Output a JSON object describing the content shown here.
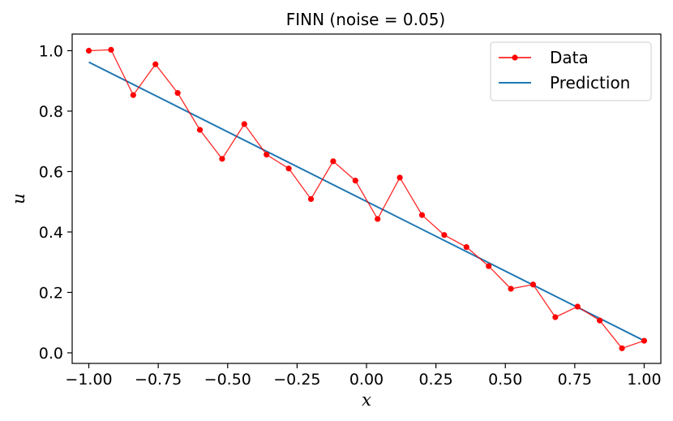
{
  "chart_data": {
    "type": "line",
    "title": "FINN (noise = 0.05)",
    "xlabel": "x",
    "ylabel": "u",
    "xlim": [
      -1.06,
      1.06
    ],
    "ylim": [
      -0.035,
      1.055
    ],
    "xticks": [
      -1.0,
      -0.75,
      -0.5,
      -0.25,
      0.0,
      0.25,
      0.5,
      0.75,
      1.0
    ],
    "xtick_labels": [
      "−1.00",
      "−0.75",
      "−0.50",
      "−0.25",
      "0.00",
      "0.25",
      "0.50",
      "0.75",
      "1.00"
    ],
    "yticks": [
      0.0,
      0.2,
      0.4,
      0.6,
      0.8,
      1.0
    ],
    "ytick_labels": [
      "0.0",
      "0.2",
      "0.4",
      "0.6",
      "0.8",
      "1.0"
    ],
    "grid": false,
    "legend_position": "top-right",
    "series": [
      {
        "name": "Data",
        "color": "#ff0000",
        "marker": "circle",
        "x": [
          -1.0,
          -0.92,
          -0.84,
          -0.76,
          -0.68,
          -0.6,
          -0.52,
          -0.44,
          -0.36,
          -0.28,
          -0.2,
          -0.12,
          -0.04,
          0.04,
          0.12,
          0.2,
          0.28,
          0.36,
          0.44,
          0.52,
          0.6,
          0.68,
          0.76,
          0.84,
          0.92,
          1.0
        ],
        "y": [
          1.0,
          1.003,
          0.853,
          0.955,
          0.86,
          0.738,
          0.642,
          0.757,
          0.656,
          0.61,
          0.509,
          0.634,
          0.57,
          0.443,
          0.58,
          0.456,
          0.39,
          0.35,
          0.287,
          0.212,
          0.226,
          0.118,
          0.153,
          0.107,
          0.015,
          0.04
        ]
      },
      {
        "name": "Prediction",
        "color": "#1f77b4",
        "marker": "none",
        "x": [
          -1.0,
          1.0
        ],
        "y": [
          0.962,
          0.04
        ]
      }
    ]
  }
}
